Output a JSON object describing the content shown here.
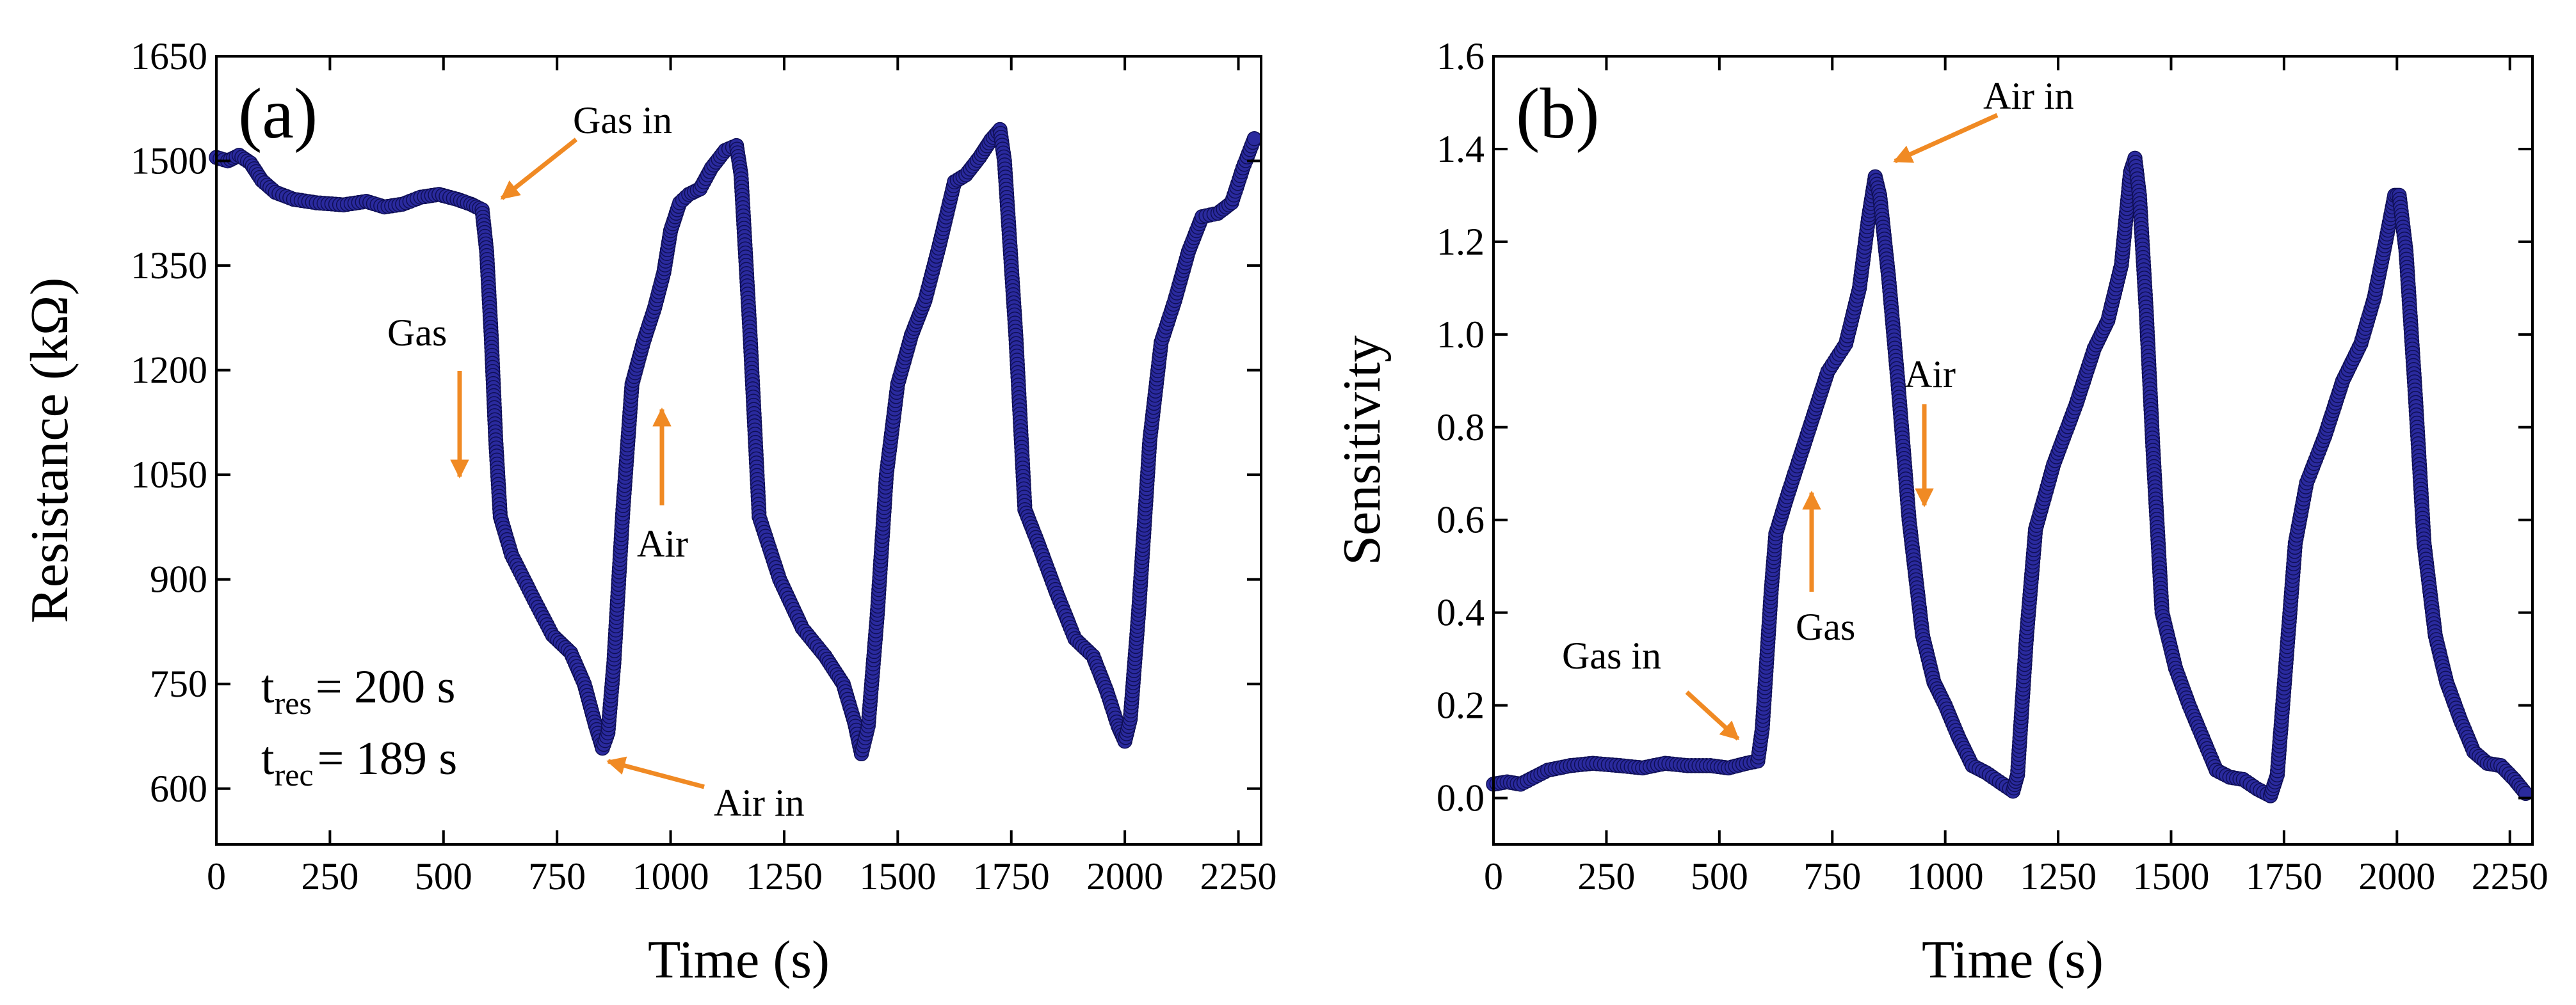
{
  "colors": {
    "series": "#2a2a9e",
    "annotation_arrow": "#f08a24",
    "axes": "#000000"
  },
  "chart_data": [
    {
      "type": "scatter",
      "panel_label": "(a)",
      "xlabel": "Time (s)",
      "ylabel": "Resistance (kΩ)",
      "xlim": [
        0,
        2300
      ],
      "ylim": [
        520,
        1650
      ],
      "x_ticks": [
        0,
        250,
        500,
        750,
        1000,
        1250,
        1500,
        1750,
        2000,
        2250
      ],
      "y_ticks": [
        600,
        750,
        900,
        1050,
        1200,
        1350,
        1500,
        1650
      ],
      "legend": "none",
      "grid": false,
      "series": [
        {
          "name": "Resistance",
          "points": [
            [
              0,
              1505
            ],
            [
              25,
              1500
            ],
            [
              50,
              1508
            ],
            [
              75,
              1497
            ],
            [
              100,
              1472
            ],
            [
              130,
              1455
            ],
            [
              170,
              1445
            ],
            [
              220,
              1440
            ],
            [
              280,
              1437
            ],
            [
              330,
              1442
            ],
            [
              370,
              1434
            ],
            [
              410,
              1438
            ],
            [
              450,
              1448
            ],
            [
              490,
              1452
            ],
            [
              530,
              1445
            ],
            [
              560,
              1438
            ],
            [
              585,
              1430
            ],
            [
              595,
              1370
            ],
            [
              605,
              1250
            ],
            [
              615,
              1100
            ],
            [
              625,
              990
            ],
            [
              650,
              935
            ],
            [
              700,
              870
            ],
            [
              740,
              820
            ],
            [
              780,
              795
            ],
            [
              810,
              750
            ],
            [
              835,
              690
            ],
            [
              850,
              658
            ],
            [
              862,
              680
            ],
            [
              875,
              780
            ],
            [
              895,
              1000
            ],
            [
              915,
              1180
            ],
            [
              940,
              1240
            ],
            [
              965,
              1290
            ],
            [
              985,
              1340
            ],
            [
              1000,
              1400
            ],
            [
              1020,
              1440
            ],
            [
              1040,
              1452
            ],
            [
              1065,
              1460
            ],
            [
              1090,
              1490
            ],
            [
              1120,
              1515
            ],
            [
              1145,
              1522
            ],
            [
              1155,
              1480
            ],
            [
              1175,
              1250
            ],
            [
              1195,
              990
            ],
            [
              1240,
              900
            ],
            [
              1290,
              830
            ],
            [
              1340,
              790
            ],
            [
              1380,
              750
            ],
            [
              1405,
              695
            ],
            [
              1420,
              650
            ],
            [
              1435,
              690
            ],
            [
              1455,
              850
            ],
            [
              1475,
              1050
            ],
            [
              1500,
              1180
            ],
            [
              1530,
              1250
            ],
            [
              1560,
              1300
            ],
            [
              1590,
              1375
            ],
            [
              1625,
              1470
            ],
            [
              1650,
              1480
            ],
            [
              1680,
              1505
            ],
            [
              1705,
              1530
            ],
            [
              1725,
              1545
            ],
            [
              1735,
              1500
            ],
            [
              1760,
              1250
            ],
            [
              1780,
              1000
            ],
            [
              1810,
              950
            ],
            [
              1850,
              880
            ],
            [
              1890,
              815
            ],
            [
              1930,
              790
            ],
            [
              1960,
              740
            ],
            [
              1985,
              690
            ],
            [
              2000,
              668
            ],
            [
              2012,
              700
            ],
            [
              2030,
              850
            ],
            [
              2055,
              1100
            ],
            [
              2080,
              1240
            ],
            [
              2110,
              1300
            ],
            [
              2140,
              1370
            ],
            [
              2170,
              1420
            ],
            [
              2205,
              1425
            ],
            [
              2235,
              1440
            ],
            [
              2260,
              1490
            ],
            [
              2285,
              1532
            ]
          ]
        }
      ],
      "annotations": [
        {
          "text": "Gas in",
          "kind": "arrow"
        },
        {
          "text": "Gas",
          "kind": "arrow-down"
        },
        {
          "text": "Air",
          "kind": "arrow-up"
        },
        {
          "text": "Air in",
          "kind": "arrow"
        }
      ],
      "info_text": {
        "response": {
          "symbol": "t",
          "subscript": "res",
          "value": "= 200 s"
        },
        "recovery": {
          "symbol": "t",
          "subscript": "rec",
          "value": "= 189 s"
        }
      }
    },
    {
      "type": "scatter",
      "panel_label": "(b)",
      "xlabel": "Time (s)",
      "ylabel": "Sensitivity",
      "xlim": [
        0,
        2300
      ],
      "ylim": [
        -0.1,
        1.6
      ],
      "x_ticks": [
        0,
        250,
        500,
        750,
        1000,
        1250,
        1500,
        1750,
        2000,
        2250
      ],
      "y_ticks": [
        0.0,
        0.2,
        0.4,
        0.6,
        0.8,
        1.0,
        1.2,
        1.4,
        1.6
      ],
      "y_tick_labels": [
        "0.0",
        "0.2",
        "0.4",
        "0.6",
        "0.8",
        "1.0",
        "1.2",
        "1.4",
        "1.6"
      ],
      "legend": "none",
      "grid": false,
      "series": [
        {
          "name": "Sensitivity",
          "points": [
            [
              0,
              0.03
            ],
            [
              30,
              0.035
            ],
            [
              60,
              0.03
            ],
            [
              90,
              0.045
            ],
            [
              120,
              0.06
            ],
            [
              170,
              0.07
            ],
            [
              220,
              0.075
            ],
            [
              280,
              0.07
            ],
            [
              330,
              0.065
            ],
            [
              380,
              0.075
            ],
            [
              430,
              0.07
            ],
            [
              480,
              0.07
            ],
            [
              520,
              0.065
            ],
            [
              560,
              0.075
            ],
            [
              585,
              0.08
            ],
            [
              595,
              0.15
            ],
            [
              605,
              0.3
            ],
            [
              615,
              0.45
            ],
            [
              625,
              0.57
            ],
            [
              650,
              0.65
            ],
            [
              700,
              0.8
            ],
            [
              740,
              0.92
            ],
            [
              780,
              0.98
            ],
            [
              810,
              1.1
            ],
            [
              830,
              1.25
            ],
            [
              845,
              1.34
            ],
            [
              855,
              1.3
            ],
            [
              875,
              1.12
            ],
            [
              895,
              0.9
            ],
            [
              920,
              0.6
            ],
            [
              950,
              0.35
            ],
            [
              975,
              0.25
            ],
            [
              1000,
              0.2
            ],
            [
              1030,
              0.13
            ],
            [
              1060,
              0.07
            ],
            [
              1090,
              0.055
            ],
            [
              1120,
              0.035
            ],
            [
              1150,
              0.015
            ],
            [
              1160,
              0.05
            ],
            [
              1180,
              0.35
            ],
            [
              1200,
              0.58
            ],
            [
              1240,
              0.72
            ],
            [
              1290,
              0.85
            ],
            [
              1330,
              0.97
            ],
            [
              1360,
              1.03
            ],
            [
              1390,
              1.15
            ],
            [
              1410,
              1.35
            ],
            [
              1420,
              1.38
            ],
            [
              1430,
              1.3
            ],
            [
              1445,
              1.05
            ],
            [
              1460,
              0.75
            ],
            [
              1480,
              0.4
            ],
            [
              1510,
              0.28
            ],
            [
              1540,
              0.2
            ],
            [
              1570,
              0.13
            ],
            [
              1600,
              0.06
            ],
            [
              1630,
              0.045
            ],
            [
              1660,
              0.04
            ],
            [
              1690,
              0.02
            ],
            [
              1720,
              0.005
            ],
            [
              1735,
              0.05
            ],
            [
              1755,
              0.3
            ],
            [
              1775,
              0.55
            ],
            [
              1800,
              0.68
            ],
            [
              1840,
              0.78
            ],
            [
              1880,
              0.9
            ],
            [
              1920,
              0.98
            ],
            [
              1950,
              1.08
            ],
            [
              1975,
              1.2
            ],
            [
              1995,
              1.3
            ],
            [
              2005,
              1.3
            ],
            [
              2020,
              1.18
            ],
            [
              2040,
              0.88
            ],
            [
              2060,
              0.55
            ],
            [
              2085,
              0.35
            ],
            [
              2110,
              0.25
            ],
            [
              2140,
              0.17
            ],
            [
              2170,
              0.1
            ],
            [
              2200,
              0.075
            ],
            [
              2230,
              0.07
            ],
            [
              2260,
              0.04
            ],
            [
              2285,
              0.01
            ]
          ]
        }
      ],
      "annotations": [
        {
          "text": "Air in",
          "kind": "arrow"
        },
        {
          "text": "Air",
          "kind": "arrow-down"
        },
        {
          "text": "Gas",
          "kind": "arrow-up"
        },
        {
          "text": "Gas in",
          "kind": "arrow"
        }
      ]
    }
  ]
}
